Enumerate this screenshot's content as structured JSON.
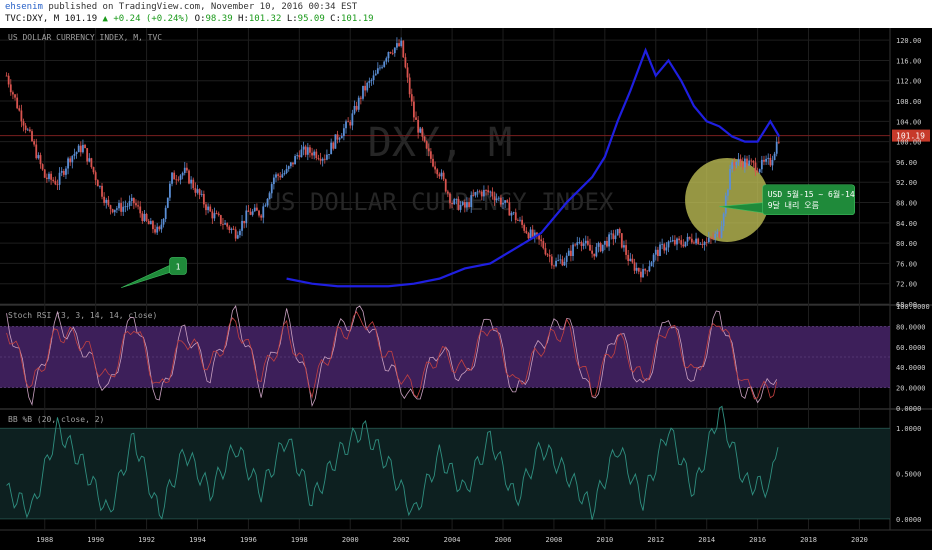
{
  "header": {
    "user": "ehsenim",
    "published_text": "published on TradingView.com, November 10, 2016 00:34 EST",
    "symbol": "TVC:DXY, M",
    "last": "101.19",
    "change": "+0.24 (+0.24%)",
    "o_label": "O:",
    "o_value": "98.39",
    "h_label": "H:",
    "h_value": "101.32",
    "l_label": "L:",
    "l_value": "95.09",
    "c_label": "C:",
    "c_value": "101.19"
  },
  "colors": {
    "background": "#000000",
    "candle_up": "#5b8fd6",
    "candle_down": "#d9544f",
    "gold_line": "#1f1fe0",
    "stoch_k": "#c8a0c0",
    "stoch_d": "#c24040",
    "stoch_band": "#3d1f5a",
    "bb_line": "#2f8f80",
    "bb_band": "#0d2020",
    "highlight_circle": "#c8c85a",
    "callout": "#1f8a3a",
    "price_badge": "#c73a2a"
  },
  "chart_data": [
    {
      "type": "line",
      "title": "US DOLLAR CURRENCY INDEX, M, TVC",
      "watermark_symbol": "DXY, M",
      "watermark_name": "US DOLLAR CURRENCY INDEX",
      "x_ticks": [
        "1988",
        "1990",
        "1992",
        "1994",
        "1996",
        "1998",
        "2000",
        "2002",
        "2004",
        "2006",
        "2008",
        "2010",
        "2012",
        "2014",
        "2016",
        "2018",
        "2020"
      ],
      "ylim": [
        68,
        122
      ],
      "y_ticks": [
        "120.00",
        "116.00",
        "112.00",
        "108.00",
        "104.00",
        "100.00",
        "96.00",
        "92.00",
        "88.00",
        "84.00",
        "80.00",
        "76.00",
        "72.00",
        "68.00"
      ],
      "last_price_label": "101.19",
      "series": [
        {
          "name": "",
          "style": "candles",
          "x": [
            1986.5,
            1987.0,
            1987.5,
            1988.0,
            1988.5,
            1989.0,
            1989.5,
            1990.0,
            1990.5,
            1991.0,
            1991.5,
            1992.0,
            1992.5,
            1993.0,
            1993.5,
            1994.0,
            1994.5,
            1995.0,
            1995.5,
            1996.0,
            1996.5,
            1997.0,
            1997.5,
            1998.0,
            1998.5,
            1999.0,
            1999.5,
            2000.0,
            2000.5,
            2001.0,
            2001.5,
            2002.0,
            2002.5,
            2003.0,
            2003.5,
            2004.0,
            2004.5,
            2005.0,
            2005.5,
            2006.0,
            2006.5,
            2007.0,
            2007.5,
            2008.0,
            2008.5,
            2009.0,
            2009.5,
            2010.0,
            2010.5,
            2011.0,
            2011.5,
            2012.0,
            2012.5,
            2013.0,
            2013.5,
            2014.0,
            2014.5,
            2015.0,
            2015.5,
            2016.0,
            2016.5,
            2016.85
          ],
          "y": [
            113,
            106,
            100,
            93,
            92,
            97,
            99,
            93,
            87,
            87,
            88,
            84,
            82,
            93,
            94,
            90,
            86,
            84,
            82,
            86,
            86,
            93,
            94,
            98,
            98,
            97,
            101,
            104,
            110,
            113,
            118,
            119,
            105,
            98,
            94,
            88,
            87,
            90,
            90,
            88,
            85,
            82,
            80,
            76,
            77,
            81,
            78,
            80,
            82,
            76,
            74,
            78,
            80,
            80,
            81,
            80,
            82,
            96,
            96,
            95,
            96,
            101.19
          ]
        },
        {
          "name": "",
          "style": "line",
          "x": [
            1997.5,
            1998.5,
            1999.5,
            2000.5,
            2001.5,
            2002.5,
            2003.5,
            2004.5,
            2005.5,
            2006.5,
            2007.5,
            2008.5,
            2009.5,
            2010.0,
            2010.5,
            2011.0,
            2011.6,
            2012.0,
            2012.5,
            2013.0,
            2013.5,
            2014.0,
            2014.5,
            2015.0,
            2015.5,
            2016.0,
            2016.5,
            2016.85
          ],
          "y": [
            73,
            72,
            71.5,
            71.5,
            71.5,
            72,
            73,
            75,
            76,
            79,
            82,
            88,
            93,
            97,
            104,
            110,
            118,
            113,
            116,
            112,
            107,
            104,
            103,
            101,
            100,
            100,
            104,
            101
          ]
        }
      ],
      "annotations": [
        {
          "label": "1"
        },
        {
          "label": "USD 5월-15 ~ 6월-14\n9달 내리 오름"
        }
      ]
    },
    {
      "type": "line",
      "title": "Stoch RSI (3, 3, 14, 14, close)",
      "ylim": [
        0,
        100
      ],
      "y_ticks": [
        "100.0000",
        "80.0000",
        "60.0000",
        "40.0000",
        "20.0000",
        "0.0000"
      ],
      "band": [
        20,
        80
      ],
      "series": [
        {
          "name": "",
          "x": [
            1986.5,
            1987.5,
            1988.5,
            1989.5,
            1990.5,
            1991.5,
            1992.5,
            1993.5,
            1994.5,
            1995.5,
            1996.5,
            1997.5,
            1998.5,
            1999.5,
            2000.5,
            2001.5,
            2002.5,
            2003.5,
            2004.5,
            2005.5,
            2006.5,
            2007.5,
            2008.5,
            2009.5,
            2010.5,
            2011.5,
            2012.5,
            2013.5,
            2014.5,
            2015.5,
            2016.5,
            2016.85
          ],
          "y": [
            90,
            10,
            85,
            60,
            15,
            95,
            5,
            80,
            30,
            95,
            20,
            88,
            10,
            75,
            95,
            40,
            5,
            60,
            25,
            95,
            10,
            65,
            90,
            5,
            80,
            15,
            95,
            20,
            98,
            10,
            20,
            45
          ]
        },
        {
          "name": "",
          "x": [
            1986.5,
            1987.5,
            1988.5,
            1989.5,
            1990.5,
            1991.5,
            1992.5,
            1993.5,
            1994.5,
            1995.5,
            1996.5,
            1997.5,
            1998.5,
            1999.5,
            2000.5,
            2001.5,
            2002.5,
            2003.5,
            2004.5,
            2005.5,
            2006.5,
            2007.5,
            2008.5,
            2009.5,
            2010.5,
            2011.5,
            2012.5,
            2013.5,
            2014.5,
            2015.5,
            2016.5,
            2016.85
          ],
          "y": [
            80,
            20,
            75,
            65,
            25,
            85,
            15,
            70,
            40,
            85,
            30,
            78,
            20,
            70,
            90,
            50,
            15,
            55,
            35,
            85,
            20,
            60,
            80,
            15,
            70,
            25,
            85,
            30,
            90,
            20,
            15,
            35
          ]
        }
      ]
    },
    {
      "type": "area",
      "title": "BB %B (20, close, 2)",
      "ylim": [
        -0.1,
        1.2
      ],
      "y_ticks": [
        "1.0000",
        "0.5000",
        "0.0000"
      ],
      "band": [
        0,
        1
      ],
      "series": [
        {
          "name": "",
          "x": [
            1986.5,
            1987.5,
            1988.5,
            1989.5,
            1990.5,
            1991.5,
            1992.5,
            1993.5,
            1994.5,
            1995.5,
            1996.5,
            1997.5,
            1998.5,
            1999.5,
            2000.5,
            2001.5,
            2002.5,
            2003.5,
            2004.5,
            2005.5,
            2006.5,
            2007.5,
            2008.5,
            2009.5,
            2010.5,
            2011.5,
            2012.5,
            2013.5,
            2014.5,
            2015.5,
            2016.5,
            2016.85
          ],
          "y": [
            0.3,
            0.1,
            1.0,
            0.6,
            0.05,
            0.9,
            0.05,
            0.75,
            0.3,
            0.8,
            0.3,
            0.9,
            0.2,
            0.7,
            1.0,
            0.6,
            0.05,
            0.7,
            0.3,
            0.9,
            0.2,
            0.8,
            0.5,
            0.1,
            0.8,
            0.2,
            1.0,
            0.3,
            1.2,
            0.4,
            0.35,
            1.0
          ]
        }
      ]
    }
  ]
}
